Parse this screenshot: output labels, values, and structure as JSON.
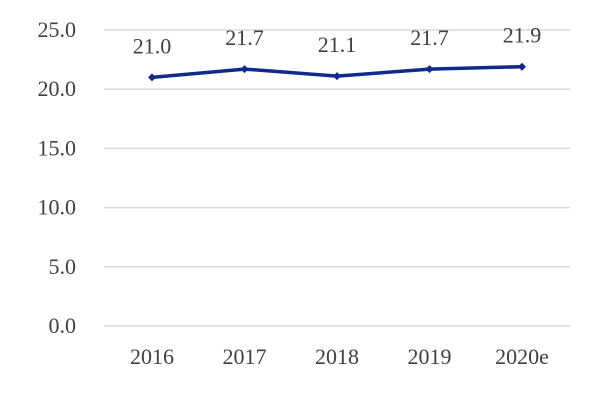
{
  "chart_data": {
    "type": "line",
    "categories": [
      "2016",
      "2017",
      "2018",
      "2019",
      "2020e"
    ],
    "series": [
      {
        "values": [
          21.0,
          21.7,
          21.1,
          21.7,
          21.9
        ],
        "data_labels": [
          "21.0",
          "21.7",
          "21.1",
          "21.7",
          "21.9"
        ],
        "color": "#0f2a8c",
        "marker": "diamond"
      }
    ],
    "yticks": [
      "0.0",
      "5.0",
      "10.0",
      "15.0",
      "20.0",
      "25.0"
    ],
    "ytick_values": [
      0,
      5,
      10,
      15,
      20,
      25
    ],
    "ylim": [
      0,
      25
    ],
    "grid": true,
    "gridline_color": "#d9d9d9",
    "legend": "none",
    "title": "",
    "xlabel": "",
    "ylabel": ""
  }
}
